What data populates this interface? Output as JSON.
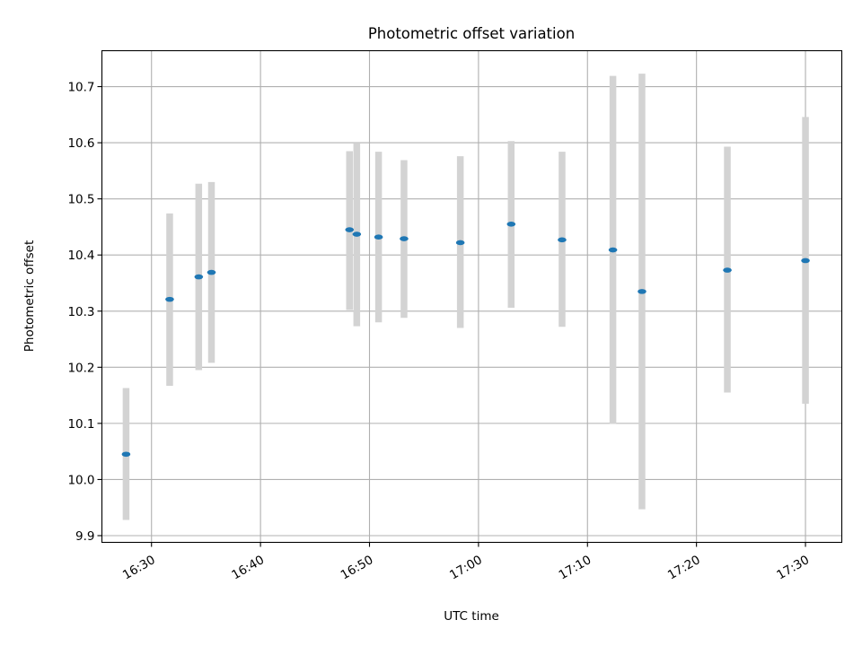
{
  "chart_data": {
    "type": "scatter",
    "title": "Photometric offset variation",
    "xlabel": "UTC time",
    "ylabel": "Photometric offset",
    "x_ticks": [
      "16:30",
      "16:40",
      "16:50",
      "17:00",
      "17:10",
      "17:20",
      "17:30"
    ],
    "y_ticks": [
      "9.9",
      "10.0",
      "10.1",
      "10.2",
      "10.3",
      "10.4",
      "10.5",
      "10.6",
      "10.7"
    ],
    "xlim": [
      "16:25:27",
      "17:33:20"
    ],
    "ylim": [
      9.888,
      10.764
    ],
    "grid": true,
    "marker_color": "#1f77b4",
    "errorbar_color": "#d3d3d3",
    "series": [
      {
        "points": [
          {
            "x": "16:27:40",
            "y": 10.045,
            "ylow": 9.928,
            "yhigh": 10.163
          },
          {
            "x": "16:31:40",
            "y": 10.321,
            "ylow": 10.167,
            "yhigh": 10.474
          },
          {
            "x": "16:34:20",
            "y": 10.361,
            "ylow": 10.195,
            "yhigh": 10.527
          },
          {
            "x": "16:35:30",
            "y": 10.369,
            "ylow": 10.208,
            "yhigh": 10.53
          },
          {
            "x": "16:48:10",
            "y": 10.445,
            "ylow": 10.302,
            "yhigh": 10.585
          },
          {
            "x": "16:48:50",
            "y": 10.437,
            "ylow": 10.273,
            "yhigh": 10.6
          },
          {
            "x": "16:50:50",
            "y": 10.432,
            "ylow": 10.28,
            "yhigh": 10.584
          },
          {
            "x": "16:53:10",
            "y": 10.429,
            "ylow": 10.288,
            "yhigh": 10.569
          },
          {
            "x": "16:58:20",
            "y": 10.422,
            "ylow": 10.27,
            "yhigh": 10.576
          },
          {
            "x": "17:03:00",
            "y": 10.455,
            "ylow": 10.306,
            "yhigh": 10.603
          },
          {
            "x": "17:07:40",
            "y": 10.427,
            "ylow": 10.272,
            "yhigh": 10.584
          },
          {
            "x": "17:12:20",
            "y": 10.409,
            "ylow": 10.099,
            "yhigh": 10.719
          },
          {
            "x": "17:15:00",
            "y": 10.335,
            "ylow": 9.947,
            "yhigh": 10.723
          },
          {
            "x": "17:22:50",
            "y": 10.373,
            "ylow": 10.155,
            "yhigh": 10.593
          },
          {
            "x": "17:30:00",
            "y": 10.39,
            "ylow": 10.135,
            "yhigh": 10.646
          }
        ]
      }
    ]
  }
}
